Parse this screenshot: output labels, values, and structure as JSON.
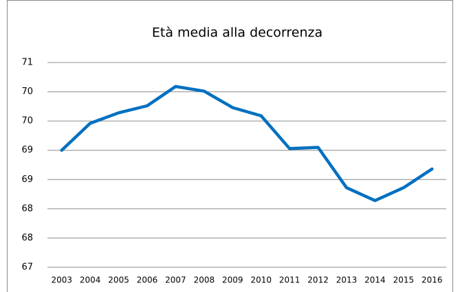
{
  "chart_data": {
    "type": "line",
    "title": "Età media alla decorrenza",
    "categories": [
      "2003",
      "2004",
      "2005",
      "2006",
      "2007",
      "2008",
      "2009",
      "2010",
      "2011",
      "2012",
      "2013",
      "2014",
      "2015",
      "2016"
    ],
    "series": [
      {
        "name": "Età media",
        "color": "#0070c0",
        "values": [
          69.0,
          69.46,
          69.64,
          69.76,
          70.09,
          70.01,
          69.73,
          69.59,
          69.03,
          69.05,
          68.36,
          68.14,
          68.36,
          68.68
        ]
      }
    ],
    "ylim": [
      67,
      70.5
    ],
    "yticks": [
      67,
      {
        "value": 67.5,
        "label": "68"
      },
      68,
      {
        "value": 68.5,
        "label": "69"
      },
      69,
      {
        "value": 69.5,
        "label": "70"
      },
      70,
      {
        "value": 70.5,
        "label": "71"
      }
    ],
    "grid": true,
    "legend": false
  }
}
